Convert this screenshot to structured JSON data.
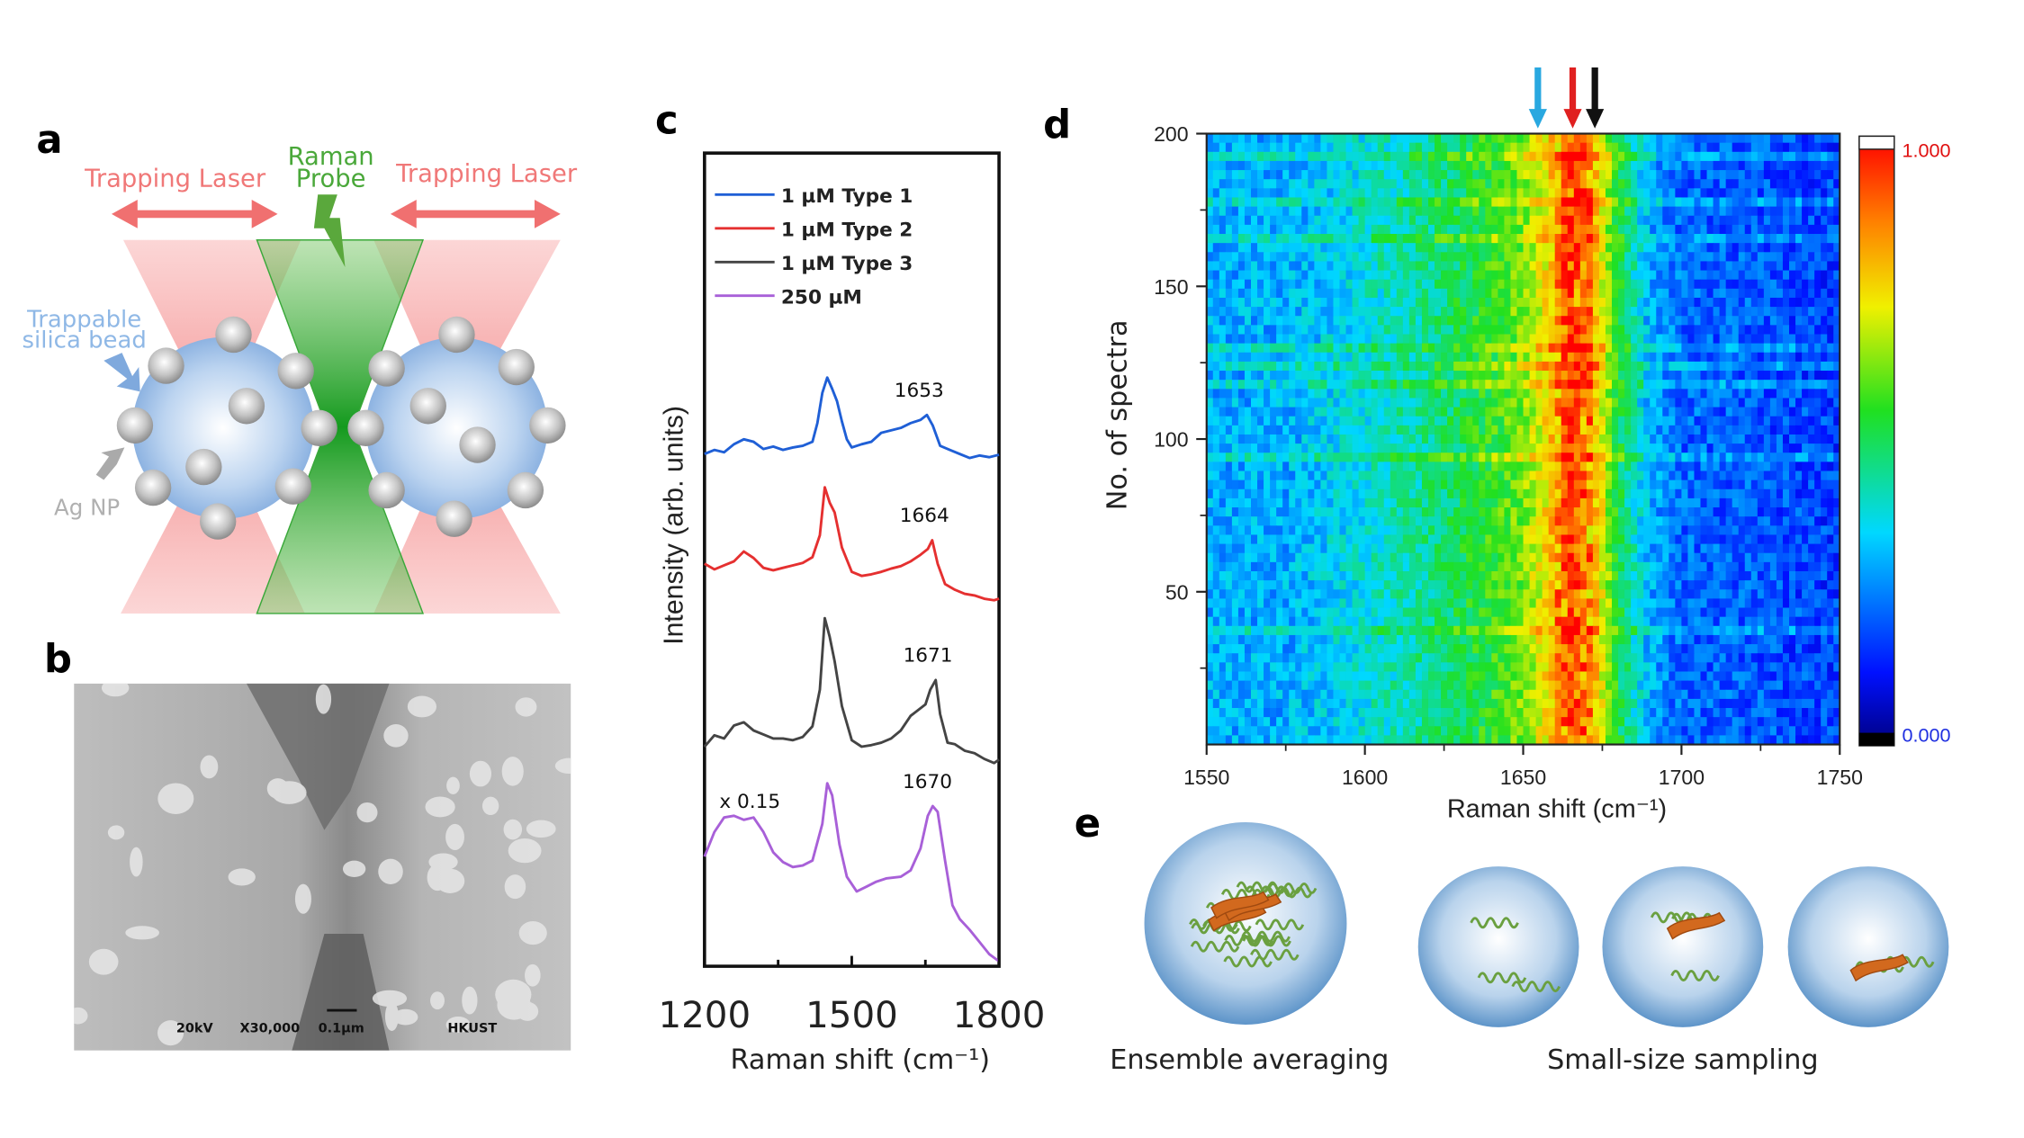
{
  "panels": {
    "a": {
      "letter": "a",
      "trapping_laser_left": "Trapping Laser",
      "trapping_laser_right": "Trapping Laser",
      "raman_probe_line1": "Raman",
      "raman_probe_line2": "Probe",
      "bead_label_line1": "Trappable",
      "bead_label_line2": "silica bead",
      "np_label": "Ag NP",
      "colors": {
        "laser": "#f07878",
        "probe": "#2e9e2e",
        "bead": "#8fb8e6",
        "np": "#b0b0b0"
      }
    },
    "b": {
      "letter": "b",
      "sem_voltage": "20kV",
      "sem_magnification": "X30,000",
      "sem_scale": "0.1µm",
      "sem_institution": "HKUST"
    },
    "c": {
      "letter": "c"
    },
    "d": {
      "letter": "d",
      "arrow_colors": [
        "#29a8e0",
        "#e02020",
        "#111111"
      ]
    },
    "e": {
      "letter": "e",
      "label_left": "Ensemble averaging",
      "label_right": "Small-size sampling"
    }
  },
  "chart_data": [
    {
      "id": "c",
      "type": "line",
      "xlabel": "Raman shift (cm⁻¹)",
      "ylabel": "Intensity (arb. units)",
      "xlim": [
        1200,
        1800
      ],
      "ylim": [
        0,
        100
      ],
      "xticks": [
        1200,
        1500,
        1800
      ],
      "xtick_labels": [
        "1200",
        "1500",
        "1800"
      ],
      "minor_xticks": [
        1350,
        1650
      ],
      "legend_position": "top-left",
      "series": [
        {
          "name": "1 µM Type 1",
          "color": "#1f5fd6",
          "peak_label": "1653",
          "x": [
            1200,
            1220,
            1240,
            1260,
            1280,
            1300,
            1320,
            1340,
            1360,
            1380,
            1400,
            1420,
            1430,
            1440,
            1450,
            1460,
            1470,
            1480,
            1490,
            1500,
            1520,
            1540,
            1560,
            1580,
            1600,
            1620,
            1640,
            1653,
            1665,
            1680,
            1700,
            1720,
            1740,
            1760,
            1780,
            1800
          ],
          "y": [
            63.0,
            63.5,
            63.2,
            64.2,
            64.8,
            64.5,
            63.6,
            63.9,
            63.5,
            63.8,
            64.0,
            64.5,
            66.8,
            70.5,
            72.4,
            71.0,
            69.5,
            67.0,
            64.8,
            63.8,
            64.2,
            64.5,
            65.6,
            65.9,
            66.2,
            66.8,
            67.2,
            67.8,
            66.5,
            64.0,
            63.5,
            63.0,
            62.5,
            62.8,
            62.6,
            62.9
          ]
        },
        {
          "name": "1 µM Type 2",
          "color": "#e53030",
          "peak_label": "1664",
          "x": [
            1200,
            1220,
            1240,
            1260,
            1280,
            1300,
            1320,
            1340,
            1360,
            1380,
            1400,
            1420,
            1435,
            1445,
            1455,
            1465,
            1480,
            1500,
            1520,
            1540,
            1560,
            1580,
            1600,
            1620,
            1640,
            1655,
            1664,
            1675,
            1690,
            1710,
            1730,
            1750,
            1770,
            1790,
            1800
          ],
          "y": [
            49.5,
            48.8,
            49.3,
            49.8,
            51.0,
            50.2,
            49.0,
            48.7,
            49.0,
            49.3,
            49.6,
            50.3,
            53.0,
            58.9,
            57.0,
            55.8,
            51.5,
            48.5,
            48.0,
            48.2,
            48.5,
            48.9,
            49.2,
            49.8,
            50.6,
            51.3,
            52.4,
            49.5,
            47.0,
            46.3,
            45.8,
            45.6,
            45.2,
            45.0,
            45.2
          ]
        },
        {
          "name": "1 µM Type 3",
          "color": "#444444",
          "peak_label": "1671",
          "x": [
            1200,
            1220,
            1240,
            1260,
            1280,
            1300,
            1320,
            1340,
            1360,
            1380,
            1400,
            1420,
            1435,
            1445,
            1455,
            1465,
            1480,
            1500,
            1520,
            1540,
            1560,
            1580,
            1600,
            1620,
            1635,
            1650,
            1660,
            1671,
            1680,
            1695,
            1710,
            1730,
            1750,
            1770,
            1790,
            1800
          ],
          "y": [
            27.0,
            28.4,
            28.0,
            29.6,
            30.0,
            29.0,
            28.5,
            28.0,
            28.0,
            27.8,
            28.2,
            29.5,
            34.0,
            42.8,
            40.5,
            37.5,
            32.0,
            27.8,
            27.0,
            27.2,
            27.5,
            28.0,
            29.0,
            30.8,
            31.5,
            32.2,
            34.0,
            35.2,
            31.0,
            27.5,
            27.3,
            26.5,
            26.2,
            25.5,
            25.0,
            25.4
          ]
        },
        {
          "name": "250 µM",
          "color": "#a860d8",
          "peak_label": "1670",
          "scale_label": "x 0.15",
          "x": [
            1200,
            1220,
            1240,
            1260,
            1280,
            1300,
            1320,
            1340,
            1360,
            1380,
            1400,
            1420,
            1440,
            1450,
            1460,
            1475,
            1490,
            1510,
            1530,
            1550,
            1570,
            1600,
            1620,
            1640,
            1655,
            1665,
            1675,
            1690,
            1705,
            1720,
            1740,
            1760,
            1780,
            1800
          ],
          "y": [
            13.5,
            16.5,
            18.3,
            18.5,
            18.0,
            18.3,
            16.5,
            14.0,
            12.8,
            12.2,
            12.4,
            13.0,
            17.5,
            22.5,
            21.0,
            15.0,
            11.0,
            9.2,
            9.8,
            10.4,
            10.8,
            11.0,
            11.8,
            14.5,
            18.5,
            19.7,
            19.0,
            13.0,
            7.5,
            5.8,
            4.5,
            3.0,
            1.5,
            0.6
          ]
        }
      ]
    },
    {
      "id": "d",
      "type": "heatmap",
      "xlabel": "Raman shift (cm⁻¹)",
      "ylabel": "No. of spectra",
      "xlim": [
        1550,
        1750
      ],
      "ylim": [
        0,
        200
      ],
      "xticks": [
        "1550",
        "1600",
        "1650",
        "1700",
        "1750"
      ],
      "yticks": [
        "50",
        "100",
        "150",
        "200"
      ],
      "colorbar": {
        "min_label": "0.000",
        "max_label": "1.000",
        "min": 0,
        "max": 1,
        "colormap": "jet",
        "min_label_color": "#2030e0",
        "max_label_color": "#e01010"
      },
      "marked_shifts": [
        1653,
        1664,
        1671
      ],
      "mean_profile": {
        "x": [
          1550,
          1575,
          1600,
          1620,
          1640,
          1650,
          1658,
          1665,
          1672,
          1680,
          1690,
          1700,
          1725,
          1750
        ],
        "values": [
          0.3,
          0.3,
          0.38,
          0.45,
          0.55,
          0.62,
          0.75,
          0.95,
          0.82,
          0.52,
          0.3,
          0.22,
          0.2,
          0.17
        ]
      }
    }
  ]
}
